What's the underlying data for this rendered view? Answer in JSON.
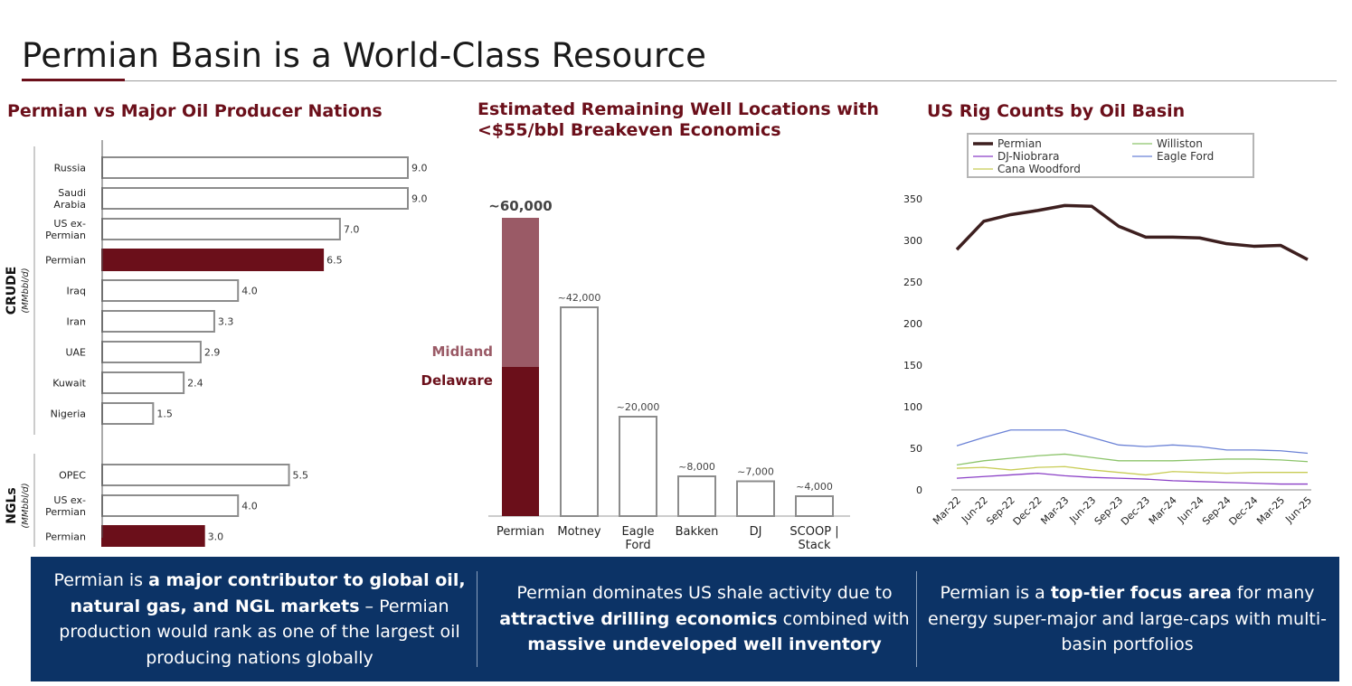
{
  "page": {
    "title": "Permian Basin is a World-Class Resource",
    "colors": {
      "accent": "#6b0f1a",
      "accent_light": "#9a5a66",
      "banner": "#0c3366",
      "bar_outline": "#8c8c8c"
    }
  },
  "chart_data": [
    {
      "type": "bar",
      "orientation": "horizontal",
      "title": "Permian vs Major Oil Producer Nations",
      "groups": [
        {
          "label": "CRUDE",
          "unit": "(MMbbl/d)",
          "categories": [
            "Russia",
            "Saudi Arabia",
            "US ex-Permian",
            "Permian",
            "Iraq",
            "Iran",
            "UAE",
            "Kuwait",
            "Nigeria"
          ],
          "category_lines": [
            [
              "Russia"
            ],
            [
              "Saudi",
              "Arabia"
            ],
            [
              "US ex-",
              "Permian"
            ],
            [
              "Permian"
            ],
            [
              "Iraq"
            ],
            [
              "Iran"
            ],
            [
              "UAE"
            ],
            [
              "Kuwait"
            ],
            [
              "Nigeria"
            ]
          ],
          "values": [
            9.0,
            9.0,
            7.0,
            6.5,
            4.0,
            3.3,
            2.9,
            2.4,
            1.5
          ],
          "labels": [
            "9.0",
            "9.0",
            "7.0",
            "6.5",
            "4.0",
            "3.3",
            "2.9",
            "2.4",
            "1.5"
          ],
          "highlight": [
            false,
            false,
            false,
            true,
            false,
            false,
            false,
            false,
            false
          ]
        },
        {
          "label": "NGLs",
          "unit": "(MMbbl/d)",
          "categories": [
            "OPEC",
            "US ex-Permian",
            "Permian"
          ],
          "category_lines": [
            [
              "OPEC"
            ],
            [
              "US ex-",
              "Permian"
            ],
            [
              "Permian"
            ]
          ],
          "values": [
            5.5,
            4.0,
            3.0
          ],
          "labels": [
            "5.5",
            "4.0",
            "3.0"
          ],
          "highlight": [
            false,
            false,
            true
          ]
        }
      ],
      "xlim": [
        0,
        9.0
      ]
    },
    {
      "type": "bar",
      "title": "Estimated Remaining Well Locations with <$55/bbl Breakeven Economics",
      "title_lines": [
        "Estimated Remaining Well Locations with",
        "<$55/bbl Breakeven Economics"
      ],
      "categories": [
        "Permian",
        "Motney",
        "Eagle Ford",
        "Bakken",
        "DJ",
        "SCOOP | Stack"
      ],
      "category_lines": [
        [
          "Permian"
        ],
        [
          "Motney"
        ],
        [
          "Eagle",
          "Ford"
        ],
        [
          "Bakken"
        ],
        [
          "DJ"
        ],
        [
          "SCOOP |",
          "Stack"
        ]
      ],
      "values": [
        60000,
        42000,
        20000,
        8000,
        7000,
        4000
      ],
      "labels": [
        "~60,000",
        "~42,000",
        "~20,000",
        "~8,000",
        "~7,000",
        "~4,000"
      ],
      "stack": {
        "category": "Permian",
        "segments": [
          {
            "name": "Delaware",
            "value": 30000
          },
          {
            "name": "Midland",
            "value": 30000
          }
        ]
      },
      "ylim": [
        0,
        60000
      ]
    },
    {
      "type": "line",
      "title": "US Rig Counts by Oil Basin",
      "x": [
        "Mar-22",
        "Jun-22",
        "Sep-22",
        "Dec-22",
        "Mar-23",
        "Jun-23",
        "Sep-23",
        "Dec-23",
        "Mar-24",
        "Jun-24",
        "Sep-24",
        "Dec-24",
        "Mar-25",
        "Jun-25"
      ],
      "yticks": [
        0,
        50,
        100,
        150,
        200,
        250,
        300,
        350
      ],
      "ylim": [
        0,
        350
      ],
      "legend_order": [
        "Permian",
        "Williston",
        "DJ-Niobrara",
        "Eagle Ford",
        "Cana Woodford"
      ],
      "series": [
        {
          "name": "Permian",
          "color": "#3d1f1f",
          "width": 3.5,
          "values": [
            289,
            323,
            331,
            336,
            342,
            341,
            317,
            304,
            304,
            303,
            296,
            293,
            294,
            277
          ]
        },
        {
          "name": "Williston",
          "color": "#8cc46a",
          "width": 1.3,
          "values": [
            30,
            35,
            38,
            41,
            43,
            39,
            35,
            35,
            35,
            36,
            37,
            37,
            36,
            34
          ]
        },
        {
          "name": "DJ-Niobrara",
          "color": "#8a3fc6",
          "width": 1.3,
          "values": [
            14,
            16,
            18,
            20,
            17,
            15,
            14,
            13,
            11,
            10,
            9,
            8,
            7,
            7
          ]
        },
        {
          "name": "Eagle Ford",
          "color": "#6b82d6",
          "width": 1.3,
          "values": [
            53,
            63,
            72,
            72,
            72,
            63,
            54,
            52,
            54,
            52,
            48,
            48,
            47,
            44
          ]
        },
        {
          "name": "Cana Woodford",
          "color": "#c8cc55",
          "width": 1.3,
          "values": [
            26,
            27,
            24,
            27,
            28,
            24,
            21,
            18,
            22,
            21,
            20,
            21,
            21,
            21
          ]
        }
      ]
    }
  ],
  "banner": {
    "col1": {
      "p1": "Permian is ",
      "b1": "a major contributor to global oil, natural gas, and NGL markets",
      "p2": " – Permian production would rank as one of the largest oil producing nations globally"
    },
    "col2": {
      "p1": "Permian dominates US shale activity due to ",
      "b1": "attractive drilling economics",
      "p2": " combined with ",
      "b2": "massive undeveloped well inventory"
    },
    "col3": {
      "p1": "Permian is a ",
      "b1": "top-tier focus area",
      "p2": " for many energy super-major and large-caps with multi-basin portfolios"
    }
  }
}
